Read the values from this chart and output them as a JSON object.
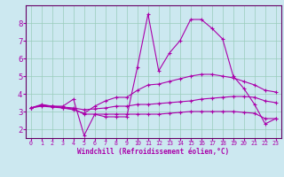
{
  "xlabel": "Windchill (Refroidissement éolien,°C)",
  "background_color": "#cce8f0",
  "grid_color": "#99ccbb",
  "line_color": "#aa00aa",
  "spine_color": "#660066",
  "x_values": [
    0,
    1,
    2,
    3,
    4,
    5,
    6,
    7,
    8,
    9,
    10,
    11,
    12,
    13,
    14,
    15,
    16,
    17,
    18,
    19,
    20,
    21,
    22,
    23
  ],
  "line1": [
    3.2,
    3.35,
    3.3,
    3.3,
    3.7,
    1.65,
    2.85,
    2.7,
    2.7,
    2.7,
    5.5,
    8.5,
    5.3,
    6.3,
    7.0,
    8.2,
    8.2,
    7.7,
    7.1,
    5.0,
    4.3,
    3.4,
    2.3,
    2.6
  ],
  "line2": [
    3.2,
    3.4,
    3.3,
    3.2,
    3.1,
    2.9,
    3.3,
    3.6,
    3.8,
    3.8,
    4.2,
    4.5,
    4.55,
    4.7,
    4.85,
    5.0,
    5.1,
    5.1,
    5.0,
    4.9,
    4.7,
    4.5,
    4.2,
    4.1
  ],
  "line3": [
    3.2,
    3.35,
    3.3,
    3.25,
    3.2,
    3.1,
    3.15,
    3.2,
    3.3,
    3.3,
    3.4,
    3.4,
    3.45,
    3.5,
    3.55,
    3.6,
    3.7,
    3.75,
    3.8,
    3.85,
    3.85,
    3.8,
    3.6,
    3.5
  ],
  "line4": [
    3.2,
    3.3,
    3.25,
    3.2,
    3.15,
    2.85,
    2.85,
    2.85,
    2.85,
    2.85,
    2.85,
    2.85,
    2.85,
    2.9,
    2.95,
    3.0,
    3.0,
    3.0,
    3.0,
    3.0,
    2.95,
    2.9,
    2.6,
    2.6
  ],
  "ylim": [
    1.5,
    9.0
  ],
  "xlim": [
    -0.5,
    23.5
  ],
  "yticks": [
    2,
    3,
    4,
    5,
    6,
    7,
    8
  ],
  "xticks": [
    0,
    1,
    2,
    3,
    4,
    5,
    6,
    7,
    8,
    9,
    10,
    11,
    12,
    13,
    14,
    15,
    16,
    17,
    18,
    19,
    20,
    21,
    22,
    23
  ],
  "xlabel_fontsize": 5.5,
  "ytick_fontsize": 6.5,
  "xtick_fontsize": 4.8
}
